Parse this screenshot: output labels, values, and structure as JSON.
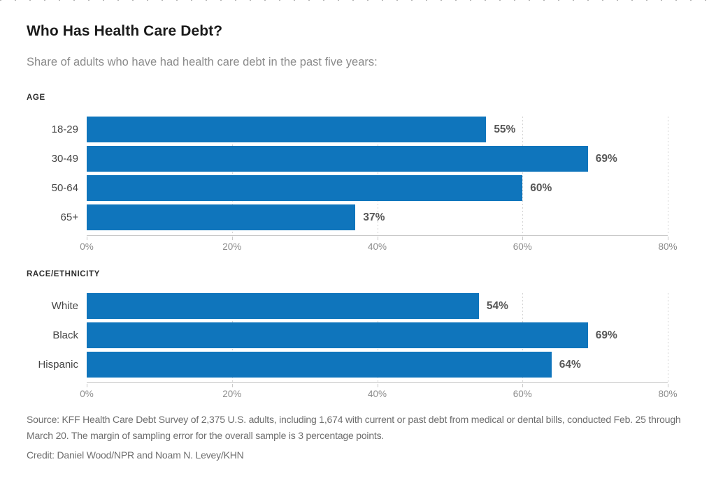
{
  "page": {
    "title": "Who Has Health Care Debt?",
    "subtitle": "Share of adults who have had health care debt in the past five years:",
    "source_note": "Source: KFF Health Care Debt Survey of 2,375 U.S. adults, including 1,674 with current or past debt from medical or dental bills, conducted Feb. 25 through March 20. The margin of sampling error for the overall sample is 3 percentage points.",
    "credit": "Credit: Daniel Wood/NPR and Noam N. Levey/KHN"
  },
  "colors": {
    "bar": "#0f75bc",
    "axis_line": "#c9c9c9",
    "gridline": "#d4d4d4",
    "title_text": "#1a1a1a",
    "subtitle_text": "#8a8a8a",
    "value_label_text": "#575757",
    "footer_text": "#6e6e6e"
  },
  "chart_data": [
    {
      "type": "bar",
      "orientation": "horizontal",
      "section_label": "AGE",
      "categories": [
        "18-29",
        "30-49",
        "50-64",
        "65+"
      ],
      "values": [
        55,
        69,
        60,
        37
      ],
      "value_labels": [
        "55%",
        "69%",
        "60%",
        "37%"
      ],
      "xlim": [
        0,
        80
      ],
      "x_ticks": [
        0,
        20,
        40,
        60,
        80
      ],
      "x_tick_labels": [
        "0%",
        "20%",
        "40%",
        "60%",
        "80%"
      ],
      "grid": "vertical-dotted",
      "legend": "none"
    },
    {
      "type": "bar",
      "orientation": "horizontal",
      "section_label": "RACE/ETHNICITY",
      "categories": [
        "White",
        "Black",
        "Hispanic"
      ],
      "values": [
        54,
        69,
        64
      ],
      "value_labels": [
        "54%",
        "69%",
        "64%"
      ],
      "xlim": [
        0,
        80
      ],
      "x_ticks": [
        0,
        20,
        40,
        60,
        80
      ],
      "x_tick_labels": [
        "0%",
        "20%",
        "40%",
        "60%",
        "80%"
      ],
      "grid": "vertical-dotted",
      "legend": "none"
    }
  ]
}
